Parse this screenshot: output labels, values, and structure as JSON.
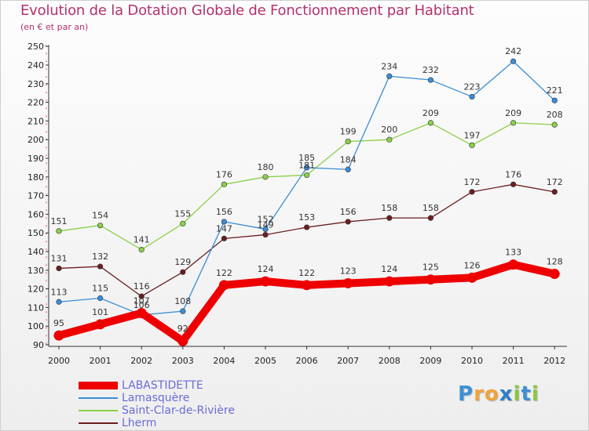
{
  "chart_data": {
    "type": "line",
    "title": "Evolution de la Dotation Globale de Fonctionnement par Habitant",
    "subtitle": "(en € et par an)",
    "categories": [
      "2000",
      "2001",
      "2002",
      "2003",
      "2004",
      "2005",
      "2006",
      "2007",
      "2008",
      "2009",
      "2010",
      "2011",
      "2012"
    ],
    "ylim": [
      90,
      250
    ],
    "yticks": [
      90,
      100,
      110,
      120,
      130,
      140,
      150,
      160,
      170,
      180,
      190,
      200,
      210,
      220,
      230,
      240,
      250
    ],
    "grid": false,
    "legend_position": "bottom-left",
    "series": [
      {
        "name": "Lherm",
        "color": "#6b1f1f",
        "values": [
          131,
          132,
          116,
          129,
          147,
          149,
          153,
          156,
          158,
          158,
          172,
          176,
          172
        ],
        "labels": [
          "131",
          "132",
          "116",
          "129",
          "147",
          "149",
          "153",
          "156",
          "158",
          "158",
          "172",
          "176",
          "172"
        ]
      },
      {
        "name": "Saint-Clar-de-Rivière",
        "color": "#8ccf4a",
        "values": [
          151,
          154,
          141,
          155,
          176,
          180,
          181,
          199,
          200,
          209,
          197,
          209,
          208
        ],
        "labels": [
          "151",
          "154",
          "141",
          "155",
          "176",
          "180",
          "181",
          "199",
          "200",
          "209",
          "197",
          "209",
          "208"
        ]
      },
      {
        "name": "Lamasquère",
        "color": "#3a8dd6",
        "values": [
          113,
          115,
          106,
          108,
          156,
          152,
          185,
          184,
          234,
          232,
          223,
          242,
          221
        ],
        "labels": [
          "113",
          "115",
          "106",
          "108",
          "156",
          "152",
          "185",
          "184",
          "234",
          "232",
          "223",
          "242",
          "221"
        ]
      },
      {
        "name": "LABASTIDETTE",
        "color": "#ee0000",
        "values": [
          95,
          101,
          107,
          92,
          122,
          124,
          122,
          123,
          124,
          125,
          126,
          133,
          128
        ],
        "labels": [
          "95",
          "101",
          "107",
          "92",
          "122",
          "124",
          "122",
          "123",
          "124",
          "125",
          "126",
          "133",
          "128"
        ]
      }
    ],
    "legend": [
      "LABASTIDETTE",
      "Lamasquère",
      "Saint-Clar-de-Rivière",
      "Lherm"
    ]
  },
  "logo": {
    "letters": [
      "P",
      "r",
      "o",
      "x",
      "i",
      "t",
      "i"
    ],
    "colors": [
      "#3d8fd8",
      "#f2a23a",
      "#f2a23a",
      "#2e7fc8",
      "#8cc63f",
      "#3d8fd8",
      "#8cc63f"
    ]
  }
}
